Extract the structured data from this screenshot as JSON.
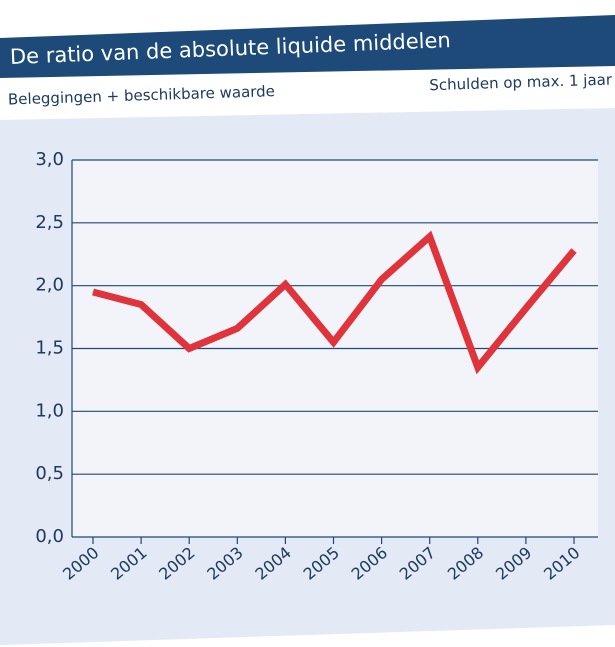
{
  "chart_data": {
    "type": "line",
    "title": "De ratio van de absolute liquide middelen",
    "subtitle_left": "Beleggingen + beschikbare waarde",
    "subtitle_right": "Schulden op max. 1 jaar",
    "categories": [
      "2000",
      "2001",
      "2002",
      "2003",
      "2004",
      "2005",
      "2006",
      "2007",
      "2008",
      "2009",
      "2010"
    ],
    "series": [
      {
        "name": null,
        "color": "#e0343c",
        "values": [
          1.95,
          1.85,
          1.5,
          1.66,
          2.01,
          1.55,
          2.05,
          2.39,
          1.35,
          1.82,
          2.28
        ]
      }
    ],
    "ylim": [
      0,
      3
    ],
    "yticks": [
      {
        "value": 0,
        "label": "0,0"
      },
      {
        "value": 0.5,
        "label": "0,5"
      },
      {
        "value": 1,
        "label": "1,0"
      },
      {
        "value": 1.5,
        "label": "1,5"
      },
      {
        "value": 2,
        "label": "2,0"
      },
      {
        "value": 2.5,
        "label": "2,5"
      },
      {
        "value": 3,
        "label": "3,0"
      }
    ],
    "grid": true
  }
}
